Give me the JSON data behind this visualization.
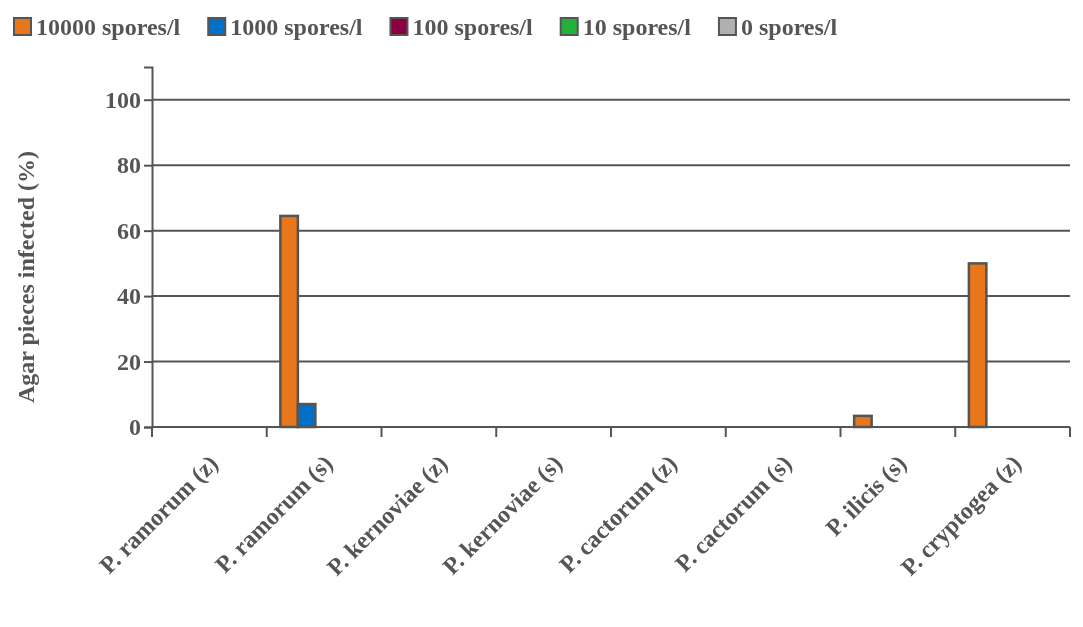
{
  "chart_data": {
    "type": "bar",
    "ylabel": "Agar pieces infected (%)",
    "categories": [
      "P. ramorum (z)",
      "P. ramorum (s)",
      "P. kernoviae (z)",
      "P. kernoviae (s)",
      "P. cactorum (z)",
      "P. cactorum (s)",
      "P. ilicis (s)",
      "P. cryptogea (z)"
    ],
    "series": [
      {
        "name": "10000 spores/l",
        "color": "#e8761a",
        "values": [
          0,
          64.5,
          0,
          0,
          0,
          0,
          3.4,
          50
        ]
      },
      {
        "name": "1000 spores/l",
        "color": "#0070c8",
        "values": [
          0,
          7,
          0,
          0,
          0,
          0,
          0,
          0
        ]
      },
      {
        "name": "100 spores/l",
        "color": "#8b0040",
        "values": [
          0,
          0,
          0,
          0,
          0,
          0,
          0,
          0
        ]
      },
      {
        "name": "10 spores/l",
        "color": "#22b03a",
        "values": [
          0,
          0,
          0,
          0,
          0,
          0,
          0,
          0
        ]
      },
      {
        "name": "0 spores/l",
        "color": "#b0b0b0",
        "values": [
          0,
          0,
          0,
          0,
          0,
          0,
          0,
          0
        ]
      }
    ],
    "ylim": [
      0,
      110
    ],
    "yticks": [
      0,
      20,
      40,
      60,
      80,
      100
    ],
    "grid": "y",
    "legend": "top"
  }
}
